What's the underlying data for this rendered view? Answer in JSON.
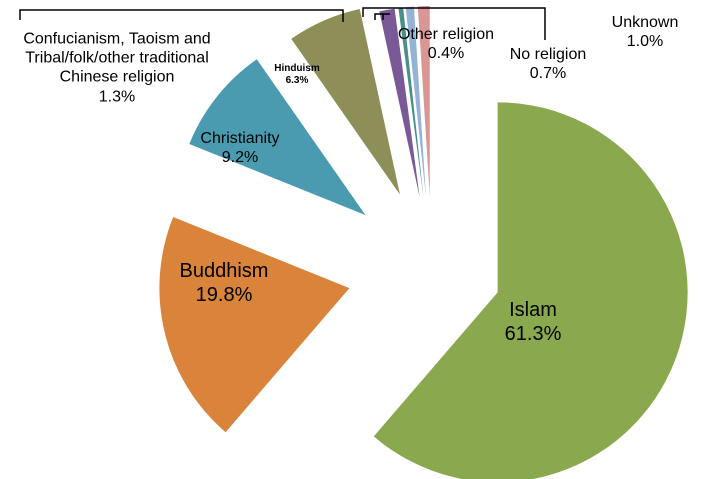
{
  "chart_data": {
    "type": "pie",
    "categories": [
      "Islam",
      "Buddhism",
      "Christianity",
      "Hinduism",
      "Confucianism, Taoism and Tribal/folk/other traditional Chinese religion",
      "Other religion",
      "No religion",
      "Unknown"
    ],
    "values": [
      61.3,
      19.8,
      9.2,
      6.3,
      1.3,
      0.4,
      0.7,
      1.0
    ],
    "value_labels": [
      "61.3%",
      "19.8%",
      "9.2%",
      "6.3%",
      "1.3%",
      "0.4%",
      "0.7%",
      "1.0%"
    ],
    "colors": [
      "#8aa84e",
      "#d9833b",
      "#4a9bb0",
      "#8e8e58",
      "#7a5a96",
      "#4a8f8a",
      "#95b3d7",
      "#d99694"
    ]
  }
}
